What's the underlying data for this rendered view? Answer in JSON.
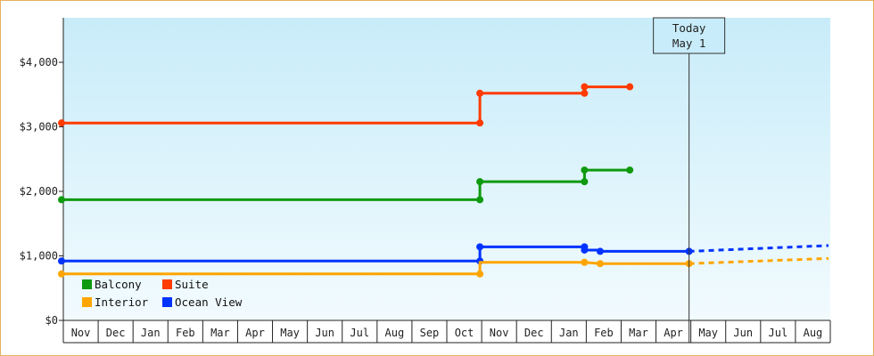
{
  "chart_data": {
    "type": "line",
    "title": "",
    "xlabel": "",
    "ylabel": "",
    "ylim": [
      0,
      4000
    ],
    "yticks": [
      "$0",
      "$1,000",
      "$2,000",
      "$3,000",
      "$4,000"
    ],
    "xaxis_months": [
      "Nov",
      "Dec",
      "Jan",
      "Feb",
      "Mar",
      "Apr",
      "May",
      "Jun",
      "Jul",
      "Aug",
      "Sep",
      "Oct",
      "Nov",
      "Dec",
      "Jan",
      "Feb",
      "Mar",
      "Apr",
      "May",
      "Jun",
      "Jul",
      "Aug"
    ],
    "today": {
      "line1": "Today",
      "line2": "May 1",
      "month_index": 18
    },
    "legend_position": "bottom-left",
    "series": [
      {
        "name": "Suite",
        "color": "#ff3b00",
        "points": [
          [
            0,
            3060
          ],
          [
            12,
            3060
          ],
          [
            12,
            3520
          ],
          [
            15,
            3520
          ],
          [
            15,
            3620
          ],
          [
            16.3,
            3620
          ]
        ],
        "markers": [
          [
            0,
            3060
          ],
          [
            12,
            3060
          ],
          [
            12,
            3520
          ],
          [
            15,
            3520
          ],
          [
            15,
            3620
          ],
          [
            16.3,
            3620
          ]
        ]
      },
      {
        "name": "Balcony",
        "color": "#0f9a0f",
        "points": [
          [
            0,
            1870
          ],
          [
            12,
            1870
          ],
          [
            12,
            2150
          ],
          [
            15,
            2150
          ],
          [
            15,
            2330
          ],
          [
            16.3,
            2330
          ]
        ],
        "markers": [
          [
            0,
            1870
          ],
          [
            12,
            1870
          ],
          [
            12,
            2150
          ],
          [
            15,
            2150
          ],
          [
            15,
            2330
          ],
          [
            16.3,
            2330
          ]
        ]
      },
      {
        "name": "Ocean View",
        "color": "#0033ff",
        "points": [
          [
            0,
            920
          ],
          [
            12,
            920
          ],
          [
            12,
            1140
          ],
          [
            15,
            1140
          ],
          [
            15,
            1090
          ],
          [
            15.45,
            1090
          ],
          [
            15.45,
            1070
          ],
          [
            18,
            1070
          ]
        ],
        "markers": [
          [
            0,
            920
          ],
          [
            12,
            920
          ],
          [
            12,
            1140
          ],
          [
            15,
            1140
          ],
          [
            15,
            1090
          ],
          [
            15.45,
            1070
          ],
          [
            18,
            1070
          ]
        ],
        "projected": [
          [
            18,
            1070
          ],
          [
            22,
            1160
          ]
        ]
      },
      {
        "name": "Interior",
        "color": "#ffa500",
        "points": [
          [
            0,
            720
          ],
          [
            12,
            720
          ],
          [
            12,
            900
          ],
          [
            15,
            900
          ],
          [
            15.45,
            880
          ],
          [
            18,
            880
          ]
        ],
        "markers": [
          [
            0,
            720
          ],
          [
            12,
            720
          ],
          [
            15,
            900
          ],
          [
            15.45,
            880
          ],
          [
            18,
            880
          ]
        ],
        "projected": [
          [
            18,
            880
          ],
          [
            22,
            960
          ]
        ]
      }
    ],
    "legend": [
      {
        "name": "Balcony",
        "color": "#0f9a0f"
      },
      {
        "name": "Suite",
        "color": "#ff3b00"
      },
      {
        "name": "Interior",
        "color": "#ffa500"
      },
      {
        "name": "Ocean View",
        "color": "#0033ff"
      }
    ]
  }
}
